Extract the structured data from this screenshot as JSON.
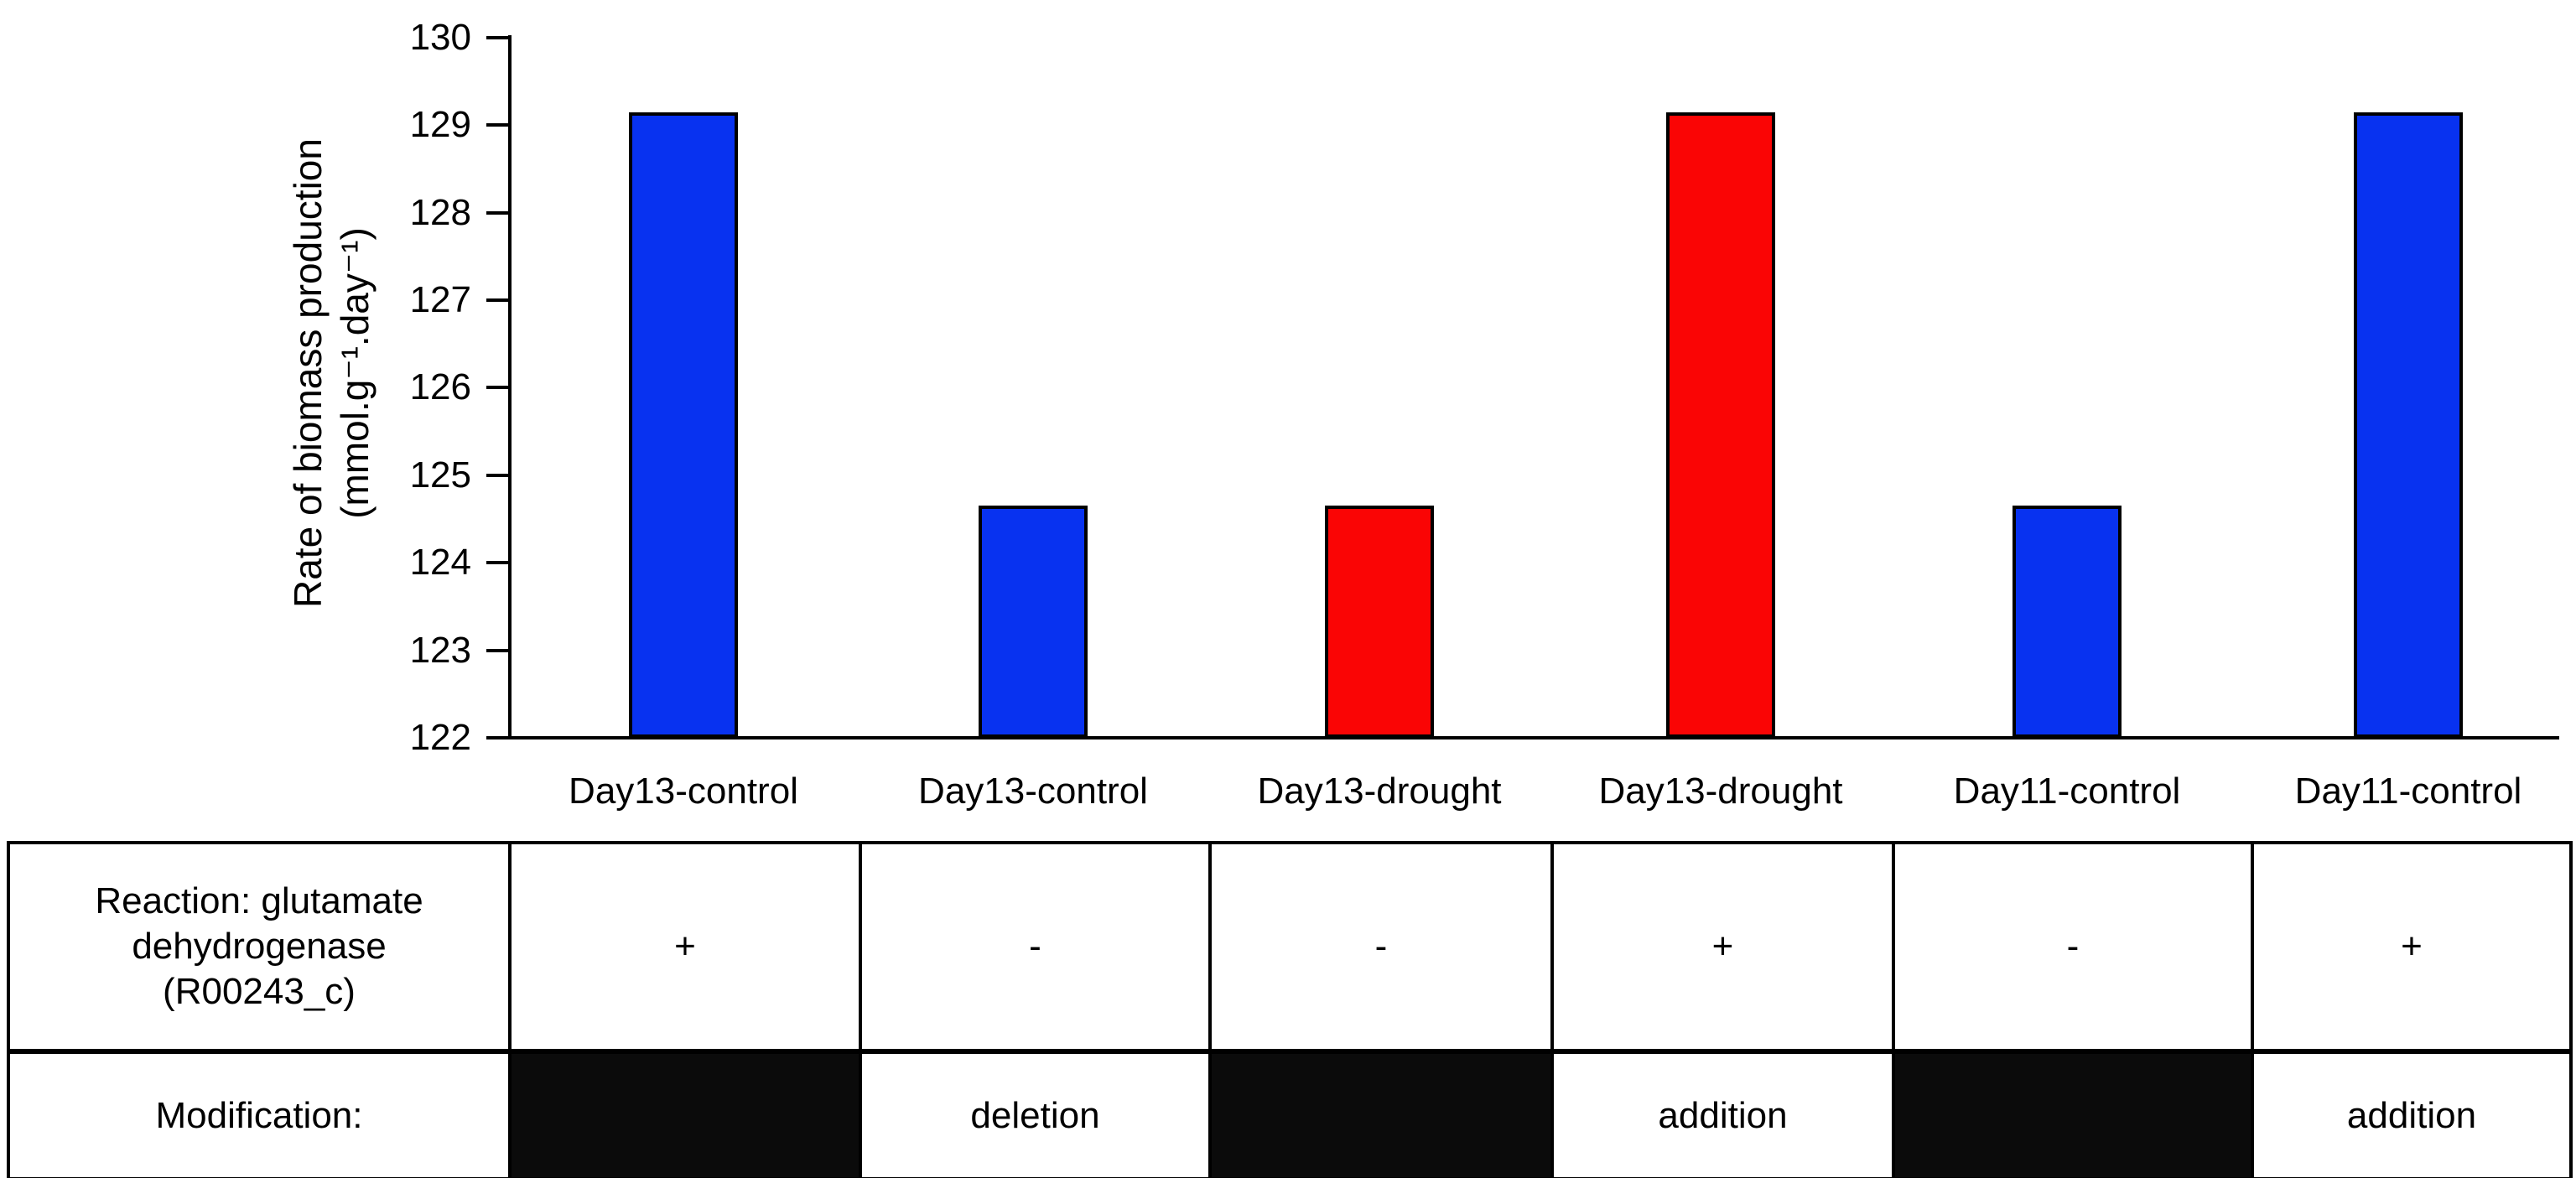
{
  "figure": {
    "y_axis": {
      "label_line1": "Rate of biomass production",
      "label_line2": "(mmol.g⁻¹.day⁻¹)"
    },
    "colors": {
      "control_blue": "#0832F0",
      "drought_red": "#FA0505",
      "blocked_black": "#0b0b0b"
    }
  },
  "chart_data": {
    "type": "bar",
    "categories": [
      "Day13-control",
      "Day13-control",
      "Day13-drought",
      "Day13-drought",
      "Day11-control",
      "Day11-control"
    ],
    "values": [
      129.15,
      124.65,
      124.65,
      129.15,
      124.65,
      129.15
    ],
    "bar_colors": [
      "#0832F0",
      "#0832F0",
      "#FA0505",
      "#FA0505",
      "#0832F0",
      "#0832F0"
    ],
    "title": "",
    "xlabel": "",
    "ylabel": "Rate of biomass production (mmol.g⁻¹.day⁻¹)",
    "ylim": [
      122,
      130
    ],
    "yticks": [
      130,
      129,
      128,
      127,
      126,
      125,
      124,
      123,
      122
    ],
    "grid": false,
    "legend": false
  },
  "table": {
    "row1_label": "Reaction: glutamate\ndehydrogenase\n(R00243_c)",
    "row1_cells": [
      "+",
      "-",
      "-",
      "+",
      "-",
      "+"
    ],
    "row2_label": "Modification:",
    "row2_cells": [
      null,
      "deletion",
      null,
      "addition",
      null,
      "addition"
    ]
  }
}
